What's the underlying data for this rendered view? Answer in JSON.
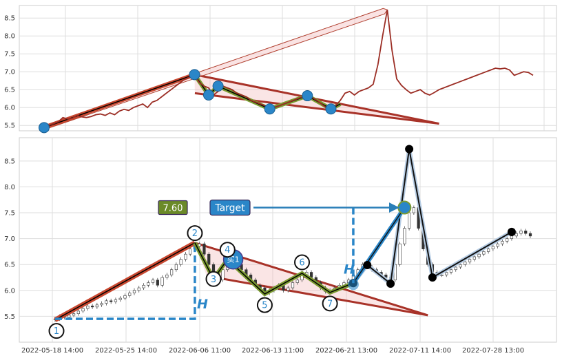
{
  "chart_data": [
    {
      "type": "line",
      "ylim": [
        5.35,
        8.85
      ],
      "yticks": [
        "5.5",
        "6.0",
        "6.5",
        "7.0",
        "7.5",
        "8.0",
        "8.5"
      ],
      "series": [
        {
          "values": [
            5.44,
            5.5,
            5.55,
            5.6,
            5.72,
            5.68,
            5.7,
            5.78,
            5.74,
            5.72,
            5.75,
            5.8,
            5.82,
            5.78,
            5.85,
            5.8,
            5.9,
            5.95,
            5.92,
            6.0,
            6.05,
            6.1,
            6.0,
            6.15,
            6.2,
            6.3,
            6.4,
            6.5,
            6.6,
            6.7,
            6.8,
            6.85,
            6.92,
            6.7,
            6.6,
            6.55,
            6.35,
            6.45,
            6.6,
            6.55,
            6.5,
            6.4,
            6.35,
            6.3,
            6.2,
            6.15,
            6.1,
            6.05,
            5.98,
            6.0,
            6.05,
            6.1,
            6.15,
            6.2,
            6.25,
            6.3,
            6.33,
            6.28,
            6.2,
            6.1,
            6.0,
            5.96,
            6.05,
            6.2,
            6.4,
            6.45,
            6.35,
            6.45,
            6.5,
            6.55,
            6.65,
            7.2,
            8.0,
            8.73,
            7.6,
            6.8,
            6.62,
            6.5,
            6.4,
            6.45,
            6.5,
            6.4,
            6.35,
            6.42,
            6.5,
            6.55,
            6.6,
            6.65,
            6.7,
            6.75,
            6.8,
            6.85,
            6.9,
            6.95,
            7.0,
            7.05,
            7.1,
            7.08,
            7.1,
            7.05,
            6.9,
            6.95,
            7.0,
            6.98,
            6.9
          ]
        }
      ],
      "markers": [
        {
          "x": 0,
          "y": 5.44
        },
        {
          "x": 32,
          "y": 6.92
        },
        {
          "x": 35,
          "y": 6.35
        },
        {
          "x": 37,
          "y": 6.6
        },
        {
          "x": 48,
          "y": 5.96
        },
        {
          "x": 56,
          "y": 6.33
        },
        {
          "x": 61,
          "y": 5.96
        }
      ]
    },
    {
      "type": "candlestick",
      "ylim": [
        5.0,
        8.95
      ],
      "yticks": [
        "5.5",
        "6.0",
        "6.5",
        "7.0",
        "7.5",
        "8.0",
        "8.5"
      ],
      "xticks": [
        "2022-05-18 14:00",
        "2022-05-25 14:00",
        "2022-06-06 11:00",
        "2022-06-13 11:00",
        "2022-06-21 13:00",
        "2022-07-11 14:00",
        "2022-07-28 13:00"
      ],
      "closes": [
        5.45,
        5.5,
        5.48,
        5.52,
        5.55,
        5.6,
        5.65,
        5.7,
        5.68,
        5.72,
        5.75,
        5.8,
        5.78,
        5.82,
        5.85,
        5.9,
        5.95,
        6.0,
        6.05,
        6.1,
        6.15,
        6.2,
        6.1,
        6.25,
        6.3,
        6.4,
        6.5,
        6.6,
        6.7,
        6.8,
        6.85,
        6.9,
        6.7,
        6.5,
        6.3,
        6.2,
        6.4,
        6.55,
        6.6,
        6.5,
        6.4,
        6.3,
        6.2,
        6.1,
        6.05,
        5.95,
        6.0,
        6.05,
        6.1,
        6.0,
        6.05,
        6.15,
        6.2,
        6.3,
        6.35,
        6.25,
        6.15,
        6.05,
        5.98,
        6.0,
        6.05,
        6.1,
        6.15,
        6.2,
        6.3,
        6.4,
        6.5,
        6.45,
        6.4,
        6.35,
        6.3,
        6.25,
        6.2,
        6.5,
        6.9,
        7.2,
        7.5,
        7.6,
        7.2,
        6.8,
        6.5,
        6.35,
        6.3,
        6.3,
        6.35,
        6.4,
        6.45,
        6.5,
        6.55,
        6.6,
        6.65,
        6.7,
        6.75,
        6.8,
        6.85,
        6.9,
        6.95,
        7.0,
        7.05,
        7.1,
        7.15,
        7.1,
        7.05
      ],
      "pattern_points": [
        {
          "label": "1",
          "x": 0,
          "y": 5.43
        },
        {
          "label": "2",
          "x": 30,
          "y": 6.92
        },
        {
          "label": "3",
          "x": 34,
          "y": 6.22
        },
        {
          "label": "4",
          "x": 37,
          "y": 6.6
        },
        {
          "label": "5",
          "x": 45,
          "y": 5.93
        },
        {
          "label": "6",
          "x": 53,
          "y": 6.33
        },
        {
          "label": "7",
          "x": 59,
          "y": 5.96
        }
      ],
      "projection": [
        {
          "x": 64,
          "y": 6.14
        },
        {
          "x": 67,
          "y": 6.49
        },
        {
          "x": 72,
          "y": 6.13
        },
        {
          "x": 76,
          "y": 8.73
        },
        {
          "x": 81,
          "y": 6.25
        },
        {
          "x": 98,
          "y": 7.13
        }
      ],
      "target_point": {
        "x": 75,
        "y": 7.6
      },
      "annotations": {
        "price_box": "7.60",
        "target_label": "Target",
        "buy_label": "买1",
        "height_label": "H"
      }
    }
  ]
}
